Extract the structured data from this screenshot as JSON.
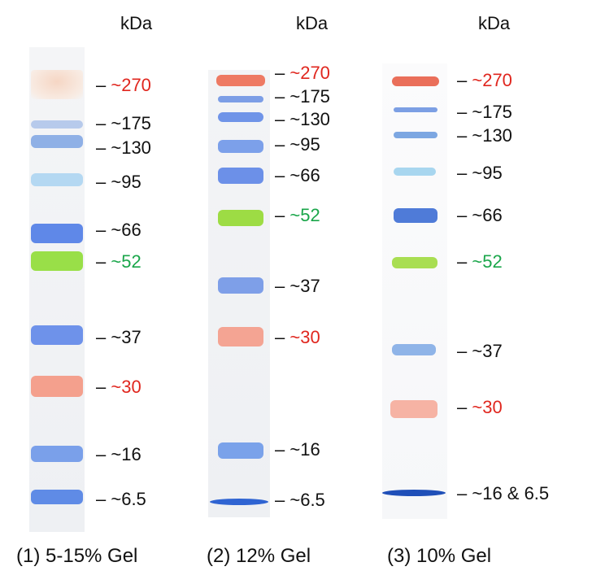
{
  "colors": {
    "red": "#e0261e",
    "green": "#1aa64a",
    "black": "#111111",
    "band_blue": "#5a86e6",
    "band_dark_blue": "#1f55c8",
    "band_light_blue": "#9cc7ef",
    "band_red": "#f29a86",
    "band_green": "#93dc3a"
  },
  "gels": [
    {
      "unit": "kDa",
      "caption": "(1) 5-15% Gel",
      "markers": [
        {
          "text": "~270",
          "color": "red"
        },
        {
          "text": "~175",
          "color": "black"
        },
        {
          "text": "~130",
          "color": "black"
        },
        {
          "text": "~95",
          "color": "black"
        },
        {
          "text": "~66",
          "color": "black"
        },
        {
          "text": "~52",
          "color": "green"
        },
        {
          "text": "~37",
          "color": "black"
        },
        {
          "text": "~30",
          "color": "red"
        },
        {
          "text": "~16",
          "color": "black"
        },
        {
          "text": "~6.5",
          "color": "black"
        }
      ]
    },
    {
      "unit": "kDa",
      "caption": "(2) 12% Gel",
      "markers": [
        {
          "text": "~270",
          "color": "red"
        },
        {
          "text": "~175",
          "color": "black"
        },
        {
          "text": "~130",
          "color": "black"
        },
        {
          "text": "~95",
          "color": "black"
        },
        {
          "text": "~66",
          "color": "black"
        },
        {
          "text": "~52",
          "color": "green"
        },
        {
          "text": "~37",
          "color": "black"
        },
        {
          "text": "~30",
          "color": "red"
        },
        {
          "text": "~16",
          "color": "black"
        },
        {
          "text": "~6.5",
          "color": "black"
        }
      ]
    },
    {
      "unit": "kDa",
      "caption": "(3) 10% Gel",
      "markers": [
        {
          "text": "~270",
          "color": "red"
        },
        {
          "text": "~175",
          "color": "black"
        },
        {
          "text": "~130",
          "color": "black"
        },
        {
          "text": "~95",
          "color": "black"
        },
        {
          "text": "~66",
          "color": "black"
        },
        {
          "text": "~52",
          "color": "green"
        },
        {
          "text": "~37",
          "color": "black"
        },
        {
          "text": "~30",
          "color": "red"
        },
        {
          "text": "~16 & 6.5",
          "color": "black"
        }
      ]
    }
  ]
}
